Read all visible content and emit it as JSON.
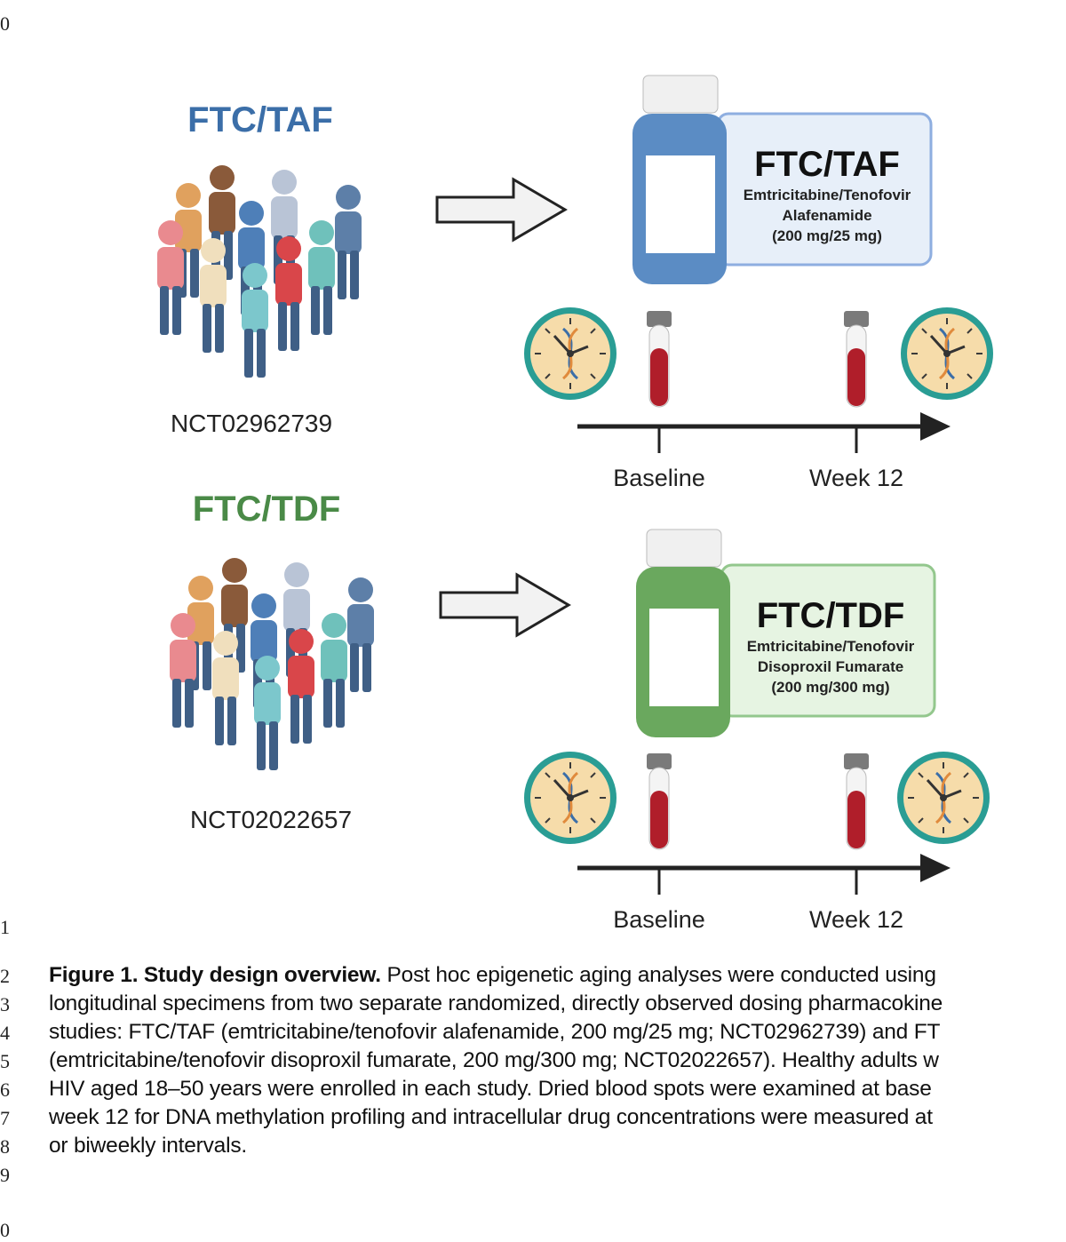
{
  "line_numbers": [
    "0",
    "1",
    "2",
    "3",
    "4",
    "5",
    "6",
    "7",
    "8",
    "9",
    "0"
  ],
  "figure": {
    "arms": [
      {
        "title": "FTC/TAF",
        "title_color": "#3b6ea8",
        "trial_id": "NCT02962739",
        "drug_label": {
          "name": "FTC/TAF",
          "line1": "Emtricitabine/Tenofovir",
          "line2": "Alafenamide",
          "dose": "(200 mg/25 mg)"
        },
        "bottle_color": "#5b8cc4",
        "label_box_fill": "#e7eff9",
        "label_box_border": "#8eaee0",
        "timeline": {
          "start_label": "Baseline",
          "end_label": "Week 12"
        }
      },
      {
        "title": "FTC/TDF",
        "title_color": "#4a8a47",
        "trial_id": "NCT02022657",
        "drug_label": {
          "name": "FTC/TDF",
          "line1": "Emtricitabine/Tenofovir",
          "line2": "Disoproxil Fumarate",
          "dose": "(200 mg/300 mg)"
        },
        "bottle_color": "#6aa85e",
        "label_box_fill": "#e6f4e2",
        "label_box_border": "#93c78d",
        "timeline": {
          "start_label": "Baseline",
          "end_label": "Week 12"
        }
      }
    ]
  },
  "caption": {
    "label": "Figure 1. Study design overview.",
    "lines": [
      " Post hoc epigenetic aging analyses were conducted using",
      "longitudinal specimens from two separate randomized, directly observed dosing pharmacokine",
      "studies: FTC/TAF (emtricitabine/tenofovir alafenamide, 200 mg/25 mg; NCT02962739) and FT",
      "(emtricitabine/tenofovir disoproxil fumarate, 200 mg/300 mg; NCT02022657). Healthy adults w",
      "HIV aged 18–50 years were enrolled in each study. Dried blood spots were examined at base",
      "week 12 for DNA methylation profiling and intracellular drug concentrations were measured at",
      "or biweekly intervals."
    ]
  }
}
